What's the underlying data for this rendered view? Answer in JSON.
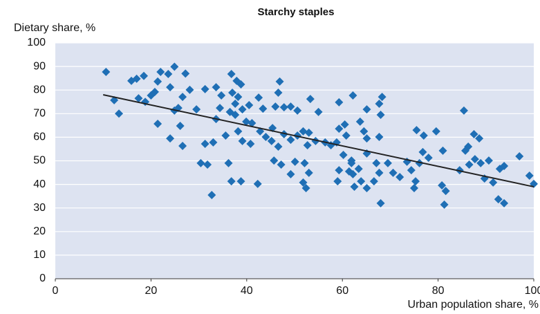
{
  "chart_data": {
    "type": "scatter",
    "title": "Starchy staples",
    "y_label": "Dietary share, %",
    "x_label": "Urban population share, %",
    "xlim": [
      0,
      100
    ],
    "xticks": [
      0,
      20,
      40,
      60,
      80,
      100
    ],
    "ylim": [
      0,
      100
    ],
    "yticks": [
      0,
      10,
      20,
      30,
      40,
      50,
      60,
      70,
      80,
      90,
      100
    ],
    "grid": true,
    "color": "#1f6fb5",
    "background": "#dde3f1",
    "x": [
      10.6,
      12.3,
      13.3,
      15.9,
      17,
      18.5,
      17.4,
      18.8,
      20,
      20.8,
      21.4,
      22,
      23.6,
      24.9,
      27.2,
      24,
      26.6,
      25.7,
      28.1,
      29.5,
      24.9,
      21.4,
      24,
      26.1,
      26.6,
      31.3,
      33.6,
      34.7,
      36.8,
      37.9,
      38.8,
      37,
      38.2,
      37.6,
      34.4,
      36.5,
      37.6,
      33.6,
      39.1,
      40.5,
      42.5,
      43.4,
      39.9,
      41.1,
      38.2,
      35.6,
      31.3,
      33,
      39.1,
      40.8,
      42.8,
      44,
      45.4,
      46.9,
      46.6,
      46,
      47.8,
      49.2,
      50.6,
      45.2,
      46.6,
      47.8,
      49.2,
      50.6,
      51.8,
      53,
      53.3,
      55,
      52.7,
      54.4,
      56.4,
      57.6,
      58.8,
      59.3,
      60.5,
      59.3,
      62.2,
      63.7,
      65.1,
      64.5,
      65.1,
      68.3,
      67.7,
      68,
      67.7,
      60.8,
      60.2,
      61.9,
      59.3,
      61.4,
      62.2,
      59,
      63.4,
      62.5,
      63.9,
      67.1,
      67.7,
      66.6,
      65.1,
      68,
      65.1,
      70.6,
      72,
      73.5,
      74.4,
      75.3,
      75,
      75.5,
      77,
      76.8,
      78,
      76.1,
      79.6,
      81,
      80.8,
      81.6,
      81.3,
      85.4,
      86.3,
      87.5,
      88.6,
      85.7,
      87.7,
      88.9,
      84.5,
      86.5,
      89.7,
      91.5,
      90.6,
      92.9,
      93.8,
      92.6,
      93.8,
      97,
      99.1,
      100,
      50.1,
      52.1,
      53,
      51.8,
      52.4,
      49.2,
      45.7,
      47.2,
      36.2,
      36.8,
      38.8,
      42.3,
      30.4,
      31.8,
      32.7,
      69.5,
      61.9
    ],
    "y": [
      87.7,
      75.7,
      70,
      83.9,
      84.8,
      86,
      76.5,
      75,
      77.7,
      79.2,
      83.6,
      87.7,
      86.8,
      89.9,
      87,
      81.2,
      77.1,
      72.4,
      80.1,
      71.8,
      71.3,
      65.7,
      59.5,
      64.8,
      56.3,
      80.4,
      81.2,
      77.7,
      86.8,
      83.9,
      82.4,
      78.9,
      77.1,
      74.2,
      72.4,
      70.7,
      69.5,
      67.7,
      71.8,
      73.6,
      76.8,
      72.1,
      66.6,
      66,
      62.5,
      60.7,
      57.2,
      57.8,
      58.4,
      57.2,
      62.5,
      60.1,
      63.9,
      83.6,
      78.9,
      73,
      72.7,
      73,
      71.3,
      58.4,
      56,
      61.3,
      58.9,
      60.7,
      62.5,
      61.9,
      76.2,
      70.7,
      56.6,
      58.4,
      57.8,
      56.6,
      57.8,
      74.8,
      65.4,
      63.6,
      77.7,
      66.6,
      71.8,
      62.5,
      59.5,
      77.1,
      74.2,
      69.5,
      60.1,
      60.7,
      52.5,
      49,
      46,
      45.5,
      44.3,
      41.3,
      46.6,
      39,
      41.3,
      49,
      44.9,
      41.3,
      38.4,
      32,
      53.1,
      44.9,
      43.1,
      49.6,
      46,
      41.3,
      38.4,
      63,
      60.7,
      53.7,
      51.3,
      49,
      62.5,
      54.3,
      39.6,
      37.2,
      31.4,
      71.3,
      56,
      61.3,
      59.5,
      54.3,
      50.7,
      49,
      46,
      48.4,
      42.5,
      40.8,
      50.1,
      46.6,
      47.8,
      33.7,
      32,
      51.9,
      43.7,
      40.2,
      49.6,
      49,
      44.9,
      40.8,
      38.4,
      44.3,
      50.1,
      48.4,
      49,
      41.3,
      41.3,
      40.2,
      49,
      48.4,
      35.5,
      49,
      50.1
    ],
    "trendline": {
      "x": [
        10,
        100
      ],
      "y": [
        78,
        39
      ],
      "color": "#222222"
    }
  }
}
